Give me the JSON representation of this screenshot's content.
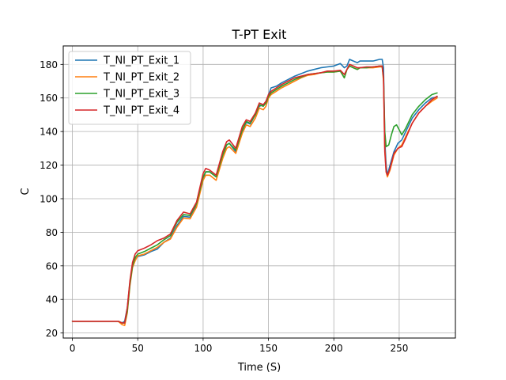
{
  "chart_data": {
    "type": "line",
    "title": "T-PT Exit",
    "xlabel": "Time (S)",
    "ylabel": "C",
    "xlim": [
      -7,
      293
    ],
    "ylim": [
      17,
      191
    ],
    "xticks": [
      0,
      50,
      100,
      150,
      200,
      250
    ],
    "yticks": [
      20,
      40,
      60,
      80,
      100,
      120,
      140,
      160,
      180
    ],
    "grid": true,
    "legend_position": "top-left",
    "series": [
      {
        "name": "T_NI_PT_Exit_1",
        "color": "#1f77b4",
        "points": [
          [
            0,
            27
          ],
          [
            35,
            27
          ],
          [
            38,
            26
          ],
          [
            40,
            27
          ],
          [
            42,
            35
          ],
          [
            44,
            50
          ],
          [
            46,
            60
          ],
          [
            48,
            64
          ],
          [
            50,
            65.5
          ],
          [
            55,
            66.5
          ],
          [
            60,
            68.5
          ],
          [
            65,
            70
          ],
          [
            70,
            74
          ],
          [
            75,
            76.5
          ],
          [
            80,
            84
          ],
          [
            85,
            89.5
          ],
          [
            90,
            89
          ],
          [
            95,
            96
          ],
          [
            100,
            112
          ],
          [
            102,
            116
          ],
          [
            105,
            116
          ],
          [
            110,
            113
          ],
          [
            115,
            126
          ],
          [
            118,
            132
          ],
          [
            120,
            133
          ],
          [
            125,
            128
          ],
          [
            130,
            140
          ],
          [
            133,
            145.5
          ],
          [
            136,
            144.5
          ],
          [
            140,
            150
          ],
          [
            143,
            155
          ],
          [
            146,
            156
          ],
          [
            148,
            157
          ],
          [
            150,
            162
          ],
          [
            152,
            166
          ],
          [
            156,
            167
          ],
          [
            160,
            169
          ],
          [
            165,
            171
          ],
          [
            170,
            173
          ],
          [
            175,
            174.5
          ],
          [
            180,
            176
          ],
          [
            185,
            177
          ],
          [
            190,
            178
          ],
          [
            195,
            178.5
          ],
          [
            200,
            179
          ],
          [
            205,
            180.5
          ],
          [
            208,
            178
          ],
          [
            210,
            179
          ],
          [
            212,
            183
          ],
          [
            215,
            182
          ],
          [
            218,
            181
          ],
          [
            220,
            182
          ],
          [
            225,
            182
          ],
          [
            230,
            182
          ],
          [
            235,
            183
          ],
          [
            237,
            183
          ],
          [
            238,
            178
          ],
          [
            239,
            135
          ],
          [
            240,
            120
          ],
          [
            241,
            114
          ],
          [
            243,
            120
          ],
          [
            246,
            128
          ],
          [
            249,
            133
          ],
          [
            252,
            135
          ],
          [
            255,
            140
          ],
          [
            260,
            148
          ],
          [
            265,
            153
          ],
          [
            270,
            157
          ],
          [
            275,
            160
          ],
          [
            279,
            160.5
          ]
        ]
      },
      {
        "name": "T_NI_PT_Exit_2",
        "color": "#ff7f0e",
        "points": [
          [
            0,
            27
          ],
          [
            35,
            27
          ],
          [
            38,
            25
          ],
          [
            40,
            24.5
          ],
          [
            42,
            32
          ],
          [
            44,
            48
          ],
          [
            46,
            59
          ],
          [
            48,
            63
          ],
          [
            50,
            66
          ],
          [
            55,
            67
          ],
          [
            60,
            69
          ],
          [
            65,
            71
          ],
          [
            70,
            74
          ],
          [
            75,
            76
          ],
          [
            80,
            83
          ],
          [
            85,
            88.5
          ],
          [
            90,
            88
          ],
          [
            95,
            95
          ],
          [
            100,
            111
          ],
          [
            102,
            114
          ],
          [
            105,
            114
          ],
          [
            110,
            111
          ],
          [
            115,
            124
          ],
          [
            118,
            130
          ],
          [
            120,
            131
          ],
          [
            125,
            127
          ],
          [
            130,
            139
          ],
          [
            133,
            144
          ],
          [
            136,
            143
          ],
          [
            140,
            148
          ],
          [
            143,
            154
          ],
          [
            146,
            153
          ],
          [
            148,
            155
          ],
          [
            150,
            160
          ],
          [
            152,
            162
          ],
          [
            156,
            164
          ],
          [
            160,
            166
          ],
          [
            165,
            168
          ],
          [
            170,
            170
          ],
          [
            175,
            172
          ],
          [
            180,
            173.5
          ],
          [
            185,
            174
          ],
          [
            190,
            175
          ],
          [
            195,
            175.5
          ],
          [
            200,
            175.5
          ],
          [
            205,
            176
          ],
          [
            208,
            172
          ],
          [
            210,
            177
          ],
          [
            212,
            179
          ],
          [
            215,
            178
          ],
          [
            218,
            177
          ],
          [
            220,
            178
          ],
          [
            225,
            178
          ],
          [
            230,
            178
          ],
          [
            235,
            178.5
          ],
          [
            237,
            178.5
          ],
          [
            238,
            170
          ],
          [
            239,
            130
          ],
          [
            240,
            116
          ],
          [
            241,
            113
          ],
          [
            243,
            117
          ],
          [
            246,
            126
          ],
          [
            249,
            130
          ],
          [
            252,
            132
          ],
          [
            255,
            137
          ],
          [
            260,
            145
          ],
          [
            265,
            151
          ],
          [
            270,
            155
          ],
          [
            275,
            158
          ],
          [
            279,
            160
          ]
        ]
      },
      {
        "name": "T_NI_PT_Exit_3",
        "color": "#2ca02c",
        "points": [
          [
            0,
            27
          ],
          [
            35,
            27
          ],
          [
            38,
            26
          ],
          [
            40,
            26
          ],
          [
            42,
            33
          ],
          [
            44,
            49
          ],
          [
            46,
            60
          ],
          [
            48,
            65
          ],
          [
            50,
            67
          ],
          [
            55,
            68.5
          ],
          [
            60,
            70.5
          ],
          [
            65,
            72.5
          ],
          [
            70,
            75.5
          ],
          [
            75,
            78
          ],
          [
            80,
            86
          ],
          [
            85,
            90.5
          ],
          [
            90,
            90
          ],
          [
            95,
            97
          ],
          [
            100,
            113
          ],
          [
            102,
            116
          ],
          [
            105,
            116
          ],
          [
            110,
            113
          ],
          [
            115,
            126
          ],
          [
            118,
            132
          ],
          [
            120,
            133
          ],
          [
            125,
            129
          ],
          [
            130,
            141
          ],
          [
            133,
            146
          ],
          [
            136,
            145
          ],
          [
            140,
            150
          ],
          [
            143,
            156
          ],
          [
            146,
            155
          ],
          [
            148,
            157
          ],
          [
            150,
            161
          ],
          [
            152,
            163
          ],
          [
            156,
            165
          ],
          [
            160,
            167
          ],
          [
            165,
            169
          ],
          [
            170,
            171
          ],
          [
            175,
            172.5
          ],
          [
            180,
            174
          ],
          [
            185,
            174.5
          ],
          [
            190,
            175
          ],
          [
            195,
            175.5
          ],
          [
            200,
            175.5
          ],
          [
            205,
            176
          ],
          [
            208,
            172
          ],
          [
            210,
            177
          ],
          [
            212,
            179
          ],
          [
            215,
            178
          ],
          [
            218,
            177
          ],
          [
            220,
            178
          ],
          [
            225,
            178
          ],
          [
            230,
            178.5
          ],
          [
            235,
            179
          ],
          [
            237,
            179
          ],
          [
            238,
            172
          ],
          [
            239,
            140
          ],
          [
            240,
            131
          ],
          [
            242,
            132
          ],
          [
            244,
            138
          ],
          [
            246,
            143
          ],
          [
            248,
            144
          ],
          [
            250,
            141
          ],
          [
            252,
            138
          ],
          [
            255,
            142
          ],
          [
            260,
            150
          ],
          [
            265,
            155
          ],
          [
            270,
            159
          ],
          [
            275,
            162
          ],
          [
            279,
            163
          ]
        ]
      },
      {
        "name": "T_NI_PT_Exit_4",
        "color": "#d62728",
        "points": [
          [
            0,
            27
          ],
          [
            35,
            27
          ],
          [
            38,
            26
          ],
          [
            40,
            26
          ],
          [
            42,
            35
          ],
          [
            44,
            51
          ],
          [
            46,
            62
          ],
          [
            48,
            67
          ],
          [
            50,
            69
          ],
          [
            55,
            70.5
          ],
          [
            60,
            72.5
          ],
          [
            65,
            75
          ],
          [
            70,
            76.5
          ],
          [
            75,
            79
          ],
          [
            80,
            87
          ],
          [
            85,
            92
          ],
          [
            90,
            91
          ],
          [
            95,
            98
          ],
          [
            100,
            115
          ],
          [
            102,
            118
          ],
          [
            105,
            117
          ],
          [
            110,
            114
          ],
          [
            115,
            128
          ],
          [
            118,
            134
          ],
          [
            120,
            135
          ],
          [
            125,
            130
          ],
          [
            130,
            143
          ],
          [
            133,
            147
          ],
          [
            136,
            146
          ],
          [
            140,
            151
          ],
          [
            143,
            157
          ],
          [
            146,
            156
          ],
          [
            148,
            158
          ],
          [
            150,
            162
          ],
          [
            152,
            164
          ],
          [
            156,
            166
          ],
          [
            160,
            168
          ],
          [
            165,
            170
          ],
          [
            170,
            172
          ],
          [
            175,
            173
          ],
          [
            180,
            174
          ],
          [
            185,
            174.5
          ],
          [
            190,
            175
          ],
          [
            195,
            176
          ],
          [
            200,
            176
          ],
          [
            205,
            176.5
          ],
          [
            208,
            174
          ],
          [
            210,
            177
          ],
          [
            212,
            180
          ],
          [
            215,
            179
          ],
          [
            218,
            178
          ],
          [
            220,
            178
          ],
          [
            225,
            178.5
          ],
          [
            230,
            178.5
          ],
          [
            235,
            179
          ],
          [
            237,
            179
          ],
          [
            238,
            172
          ],
          [
            239,
            128
          ],
          [
            240,
            116
          ],
          [
            241,
            114
          ],
          [
            243,
            118
          ],
          [
            246,
            127
          ],
          [
            249,
            130
          ],
          [
            252,
            131
          ],
          [
            255,
            136
          ],
          [
            260,
            145
          ],
          [
            265,
            151
          ],
          [
            270,
            155
          ],
          [
            275,
            159
          ],
          [
            279,
            161
          ]
        ]
      }
    ]
  }
}
